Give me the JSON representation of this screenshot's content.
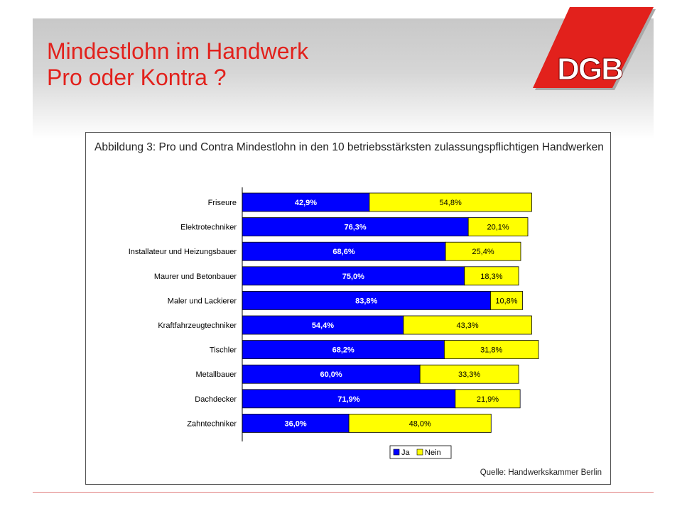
{
  "slide": {
    "title_line1": "Mindestlohn im Handwerk",
    "title_line2": "Pro oder Kontra ?",
    "logo_text": "DGB"
  },
  "colors": {
    "title_red": "#e2211c",
    "ja_blue": "#0000ff",
    "nein_yellow": "#ffff00"
  },
  "chart_data": {
    "type": "bar",
    "orientation": "horizontal",
    "stacked": true,
    "title": "Abbildung 3: Pro und Contra Mindestlohn in den 10 betriebsstärksten zulassungspflichtigen Handwerken",
    "categories": [
      "Friseure",
      "Elektrotechniker",
      "Installateur und Heizungsbauer",
      "Maurer und Betonbauer",
      "Maler und Lackierer",
      "Kraftfahrzeugtechniker",
      "Tischler",
      "Metallbauer",
      "Dachdecker",
      "Zahntechniker"
    ],
    "series": [
      {
        "name": "Ja",
        "color": "#0000ff",
        "values": [
          42.9,
          76.3,
          68.6,
          75.0,
          83.8,
          54.4,
          68.2,
          60.0,
          71.9,
          36.0
        ],
        "labels": [
          "42,9%",
          "76,3%",
          "68,6%",
          "75,0%",
          "83,8%",
          "54,4%",
          "68,2%",
          "60,0%",
          "71,9%",
          "36,0%"
        ]
      },
      {
        "name": "Nein",
        "color": "#ffff00",
        "values": [
          54.8,
          20.1,
          25.4,
          18.3,
          10.8,
          43.3,
          31.8,
          33.3,
          21.9,
          48.0
        ],
        "labels": [
          "54,8%",
          "20,1%",
          "25,4%",
          "18,3%",
          "10,8%",
          "43,3%",
          "31,8%",
          "33,3%",
          "21,9%",
          "48,0%"
        ]
      }
    ],
    "xlim": [
      0,
      100
    ],
    "grid": false,
    "legend": "bottom-center",
    "source": "Quelle: Handwerkskammer Berlin"
  }
}
